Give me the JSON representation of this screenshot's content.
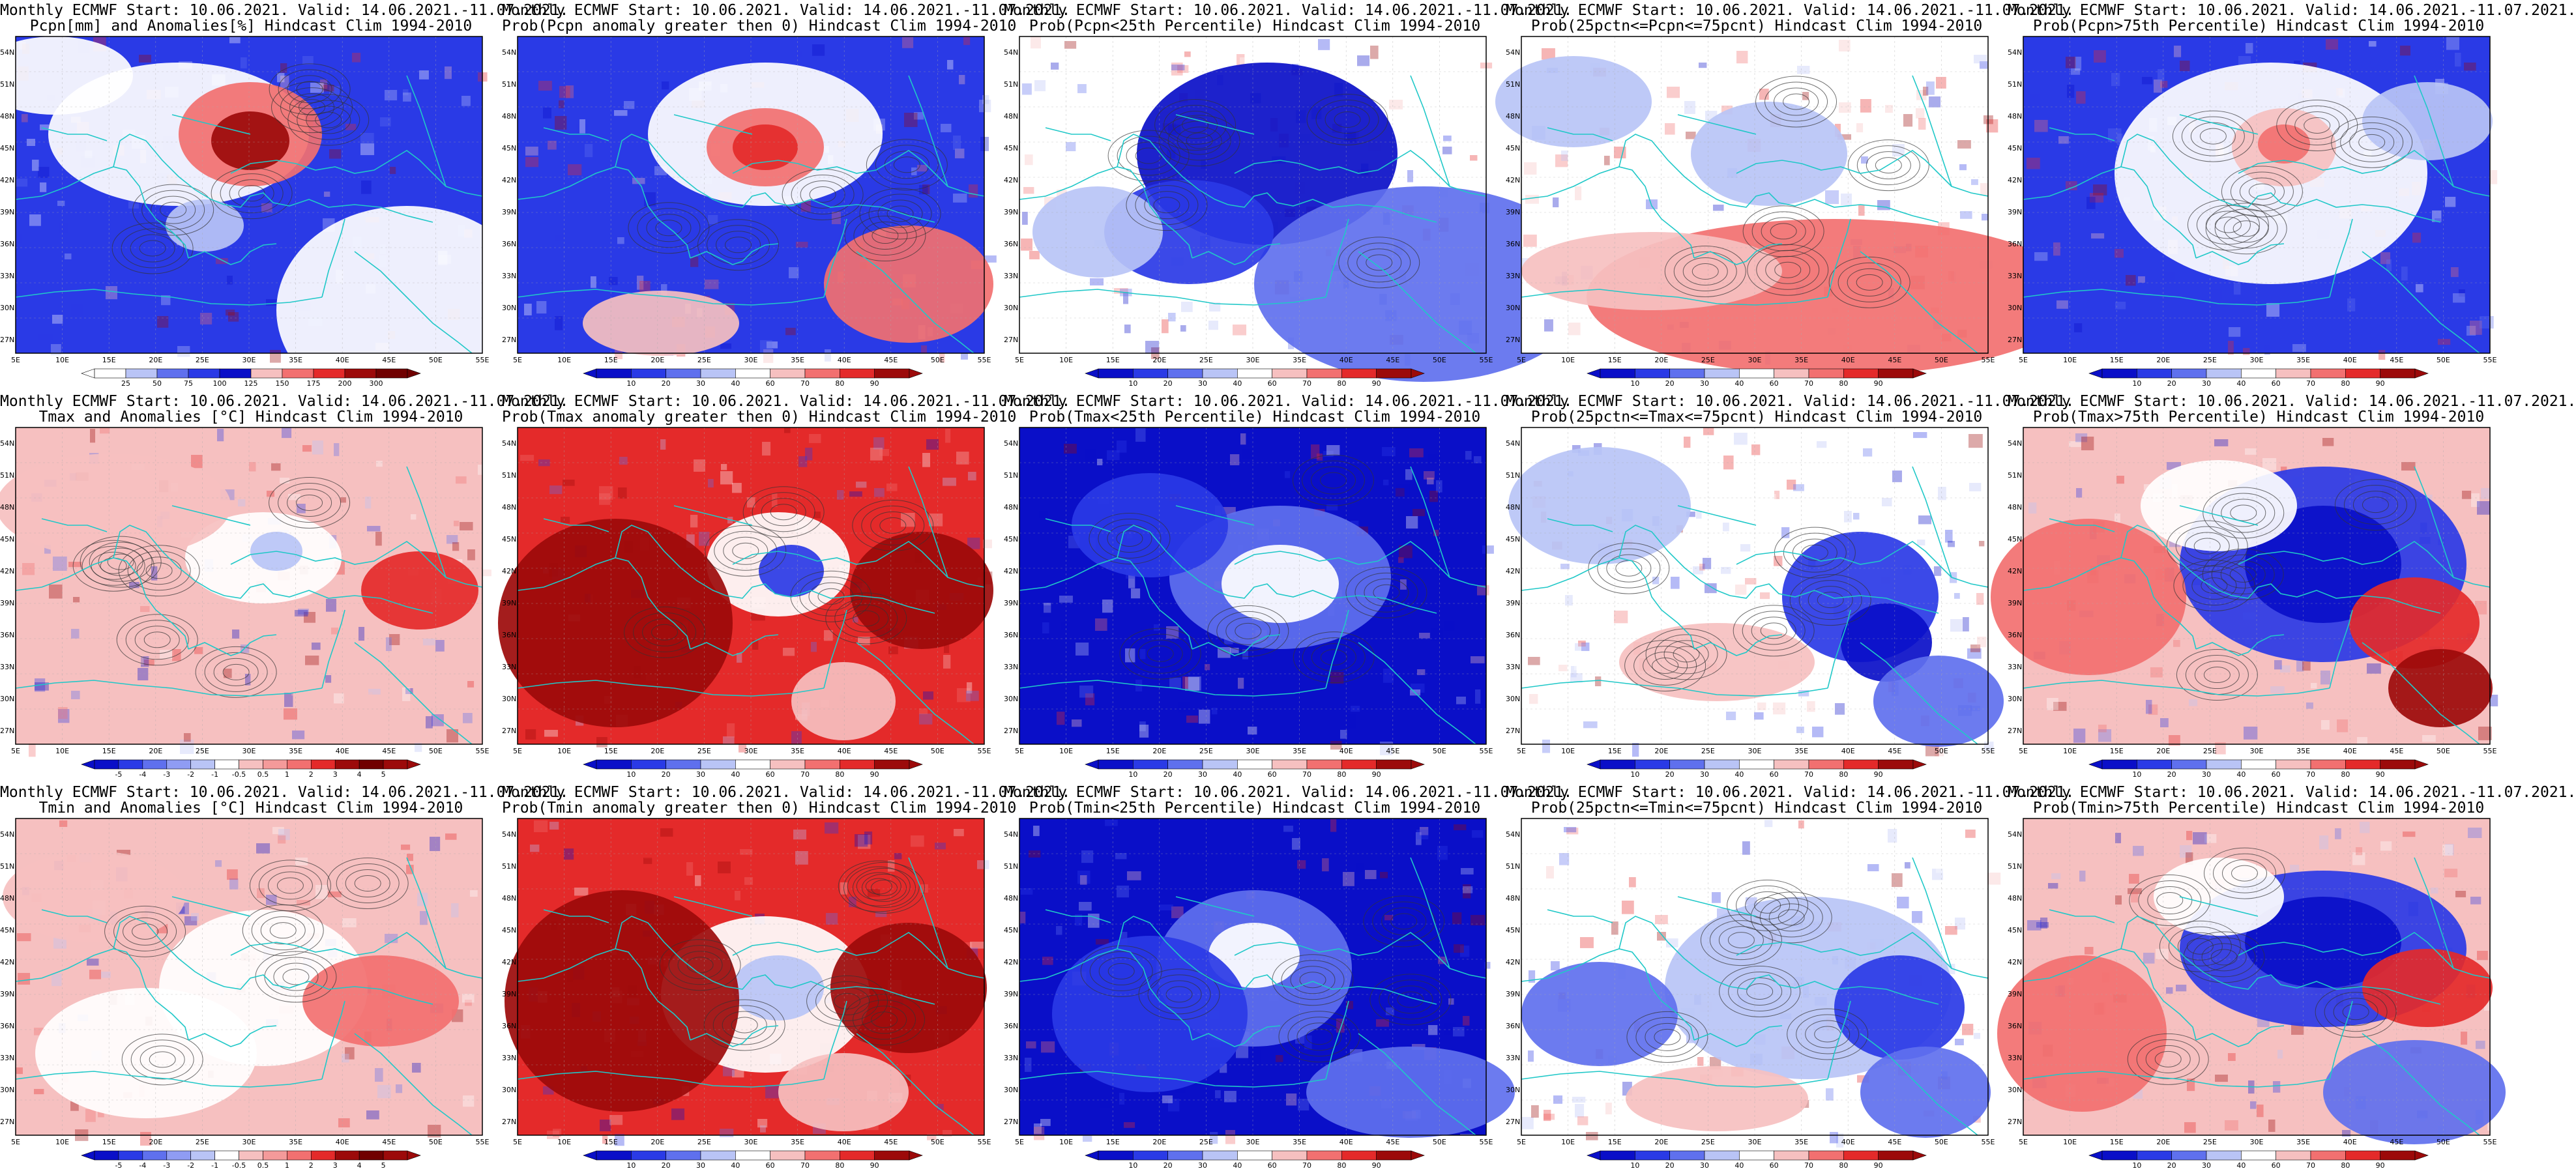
{
  "colors": {
    "dark_blue": "#0a0fc8",
    "blue": "#2a3ae6",
    "mid_blue": "#5f70ee",
    "light_blue": "#b9c4f6",
    "white": "#ffffff",
    "light_red": "#f6c0c0",
    "red": "#f27070",
    "mid_red": "#e42a2a",
    "dark_red": "#9c0a0a",
    "coast": "#20c8c8",
    "contour": "#333333"
  },
  "map": {
    "lat_labels": [
      "54N",
      "51N",
      "48N",
      "45N",
      "42N",
      "39N",
      "36N",
      "33N",
      "30N",
      "27N"
    ],
    "lon_labels": [
      "5E",
      "10E",
      "15E",
      "20E",
      "25E",
      "30E",
      "35E",
      "40E",
      "45E",
      "50E",
      "55E"
    ]
  },
  "colorbars": {
    "pcpn": [
      "25",
      "50",
      "75",
      "100",
      "125",
      "150",
      "175",
      "200",
      "300"
    ],
    "prob": [
      "10",
      "20",
      "30",
      "40",
      "60",
      "70",
      "80",
      "90"
    ],
    "temp": [
      "-5",
      "-4",
      "-3",
      "-2",
      "-1",
      "-0.5",
      "0.5",
      "1",
      "2",
      "3",
      "4",
      "5"
    ]
  },
  "panels": [
    {
      "title1": "Monthly ECMWF Start: 10.06.2021. Valid: 14.06.2021.-11.07.2021.",
      "title2": "Pcpn[mm] and Anomalies[%] Hindcast Clim 1994-2010",
      "scheme": "pcpn_anom",
      "cbar": "pcpn"
    },
    {
      "title1": "Monthly ECMWF Start: 10.06.2021. Valid: 14.06.2021.-11.07.2021.",
      "title2": "Prob(Pcpn anomaly greater then 0) Hindcast Clim 1994-2010",
      "scheme": "pcpn_prob",
      "cbar": "prob"
    },
    {
      "title1": "Monthly ECMWF Start: 10.06.2021. Valid: 14.06.2021.-11.07.2021.",
      "title2": "Prob(Pcpn<25th Percentile) Hindcast Clim 1994-2010",
      "scheme": "pcpn_low",
      "cbar": "prob"
    },
    {
      "title1": "Monthly ECMWF Start: 10.06.2021. Valid: 14.06.2021.-11.07.2021.",
      "title2": "Prob(25pctn<=Pcpn<=75pcnt) Hindcast Clim 1994-2010",
      "scheme": "pcpn_mid",
      "cbar": "prob"
    },
    {
      "title1": "Monthly ECMWF Start: 10.06.2021. Valid: 14.06.2021.-11.07.2021.",
      "title2": "Prob(Pcpn>75th Percentile) Hindcast Clim 1994-2010",
      "scheme": "pcpn_high",
      "cbar": "prob"
    },
    {
      "title1": "Monthly ECMWF Start: 10.06.2021. Valid: 14.06.2021.-11.07.2021.",
      "title2": "Tmax and Anomalies [°C] Hindcast Clim 1994-2010",
      "scheme": "tmax_anom",
      "cbar": "temp"
    },
    {
      "title1": "Monthly ECMWF Start: 10.06.2021. Valid: 14.06.2021.-11.07.2021.",
      "title2": "Prob(Tmax anomaly greater then 0) Hindcast Clim 1994-2010",
      "scheme": "tmax_prob",
      "cbar": "prob"
    },
    {
      "title1": "Monthly ECMWF Start: 10.06.2021. Valid: 14.06.2021.-11.07.2021.",
      "title2": "Prob(Tmax<25th Percentile) Hindcast Clim 1994-2010",
      "scheme": "tmax_low",
      "cbar": "prob"
    },
    {
      "title1": "Monthly ECMWF Start: 10.06.2021. Valid: 14.06.2021.-11.07.2021.",
      "title2": "Prob(25pctn<=Tmax<=75pcnt) Hindcast Clim 1994-2010",
      "scheme": "tmax_mid",
      "cbar": "prob"
    },
    {
      "title1": "Monthly ECMWF Start: 10.06.2021. Valid: 14.06.2021.-11.07.2021.",
      "title2": "Prob(Tmax>75th Percentile) Hindcast Clim 1994-2010",
      "scheme": "tmax_high",
      "cbar": "prob"
    },
    {
      "title1": "Monthly ECMWF Start: 10.06.2021. Valid: 14.06.2021.-11.07.2021.",
      "title2": "Tmin and Anomalies [°C] Hindcast Clim 1994-2010",
      "scheme": "tmin_anom",
      "cbar": "temp"
    },
    {
      "title1": "Monthly ECMWF Start: 10.06.2021. Valid: 14.06.2021.-11.07.2021.",
      "title2": "Prob(Tmin anomaly greater then 0) Hindcast Clim 1994-2010",
      "scheme": "tmin_prob",
      "cbar": "prob"
    },
    {
      "title1": "Monthly ECMWF Start: 10.06.2021. Valid: 14.06.2021.-11.07.2021.",
      "title2": "Prob(Tmin<25th Percentile) Hindcast Clim 1994-2010",
      "scheme": "tmin_low",
      "cbar": "prob"
    },
    {
      "title1": "Monthly ECMWF Start: 10.06.2021. Valid: 14.06.2021.-11.07.2021.",
      "title2": "Prob(25pctn<=Tmin<=75pcnt) Hindcast Clim 1994-2010",
      "scheme": "tmin_mid",
      "cbar": "prob"
    },
    {
      "title1": "Monthly ECMWF Start: 10.06.2021. Valid: 14.06.2021.-11.07.2021.",
      "title2": "Prob(Tmin>75th Percentile) Hindcast Clim 1994-2010",
      "scheme": "tmin_high",
      "cbar": "prob"
    }
  ]
}
